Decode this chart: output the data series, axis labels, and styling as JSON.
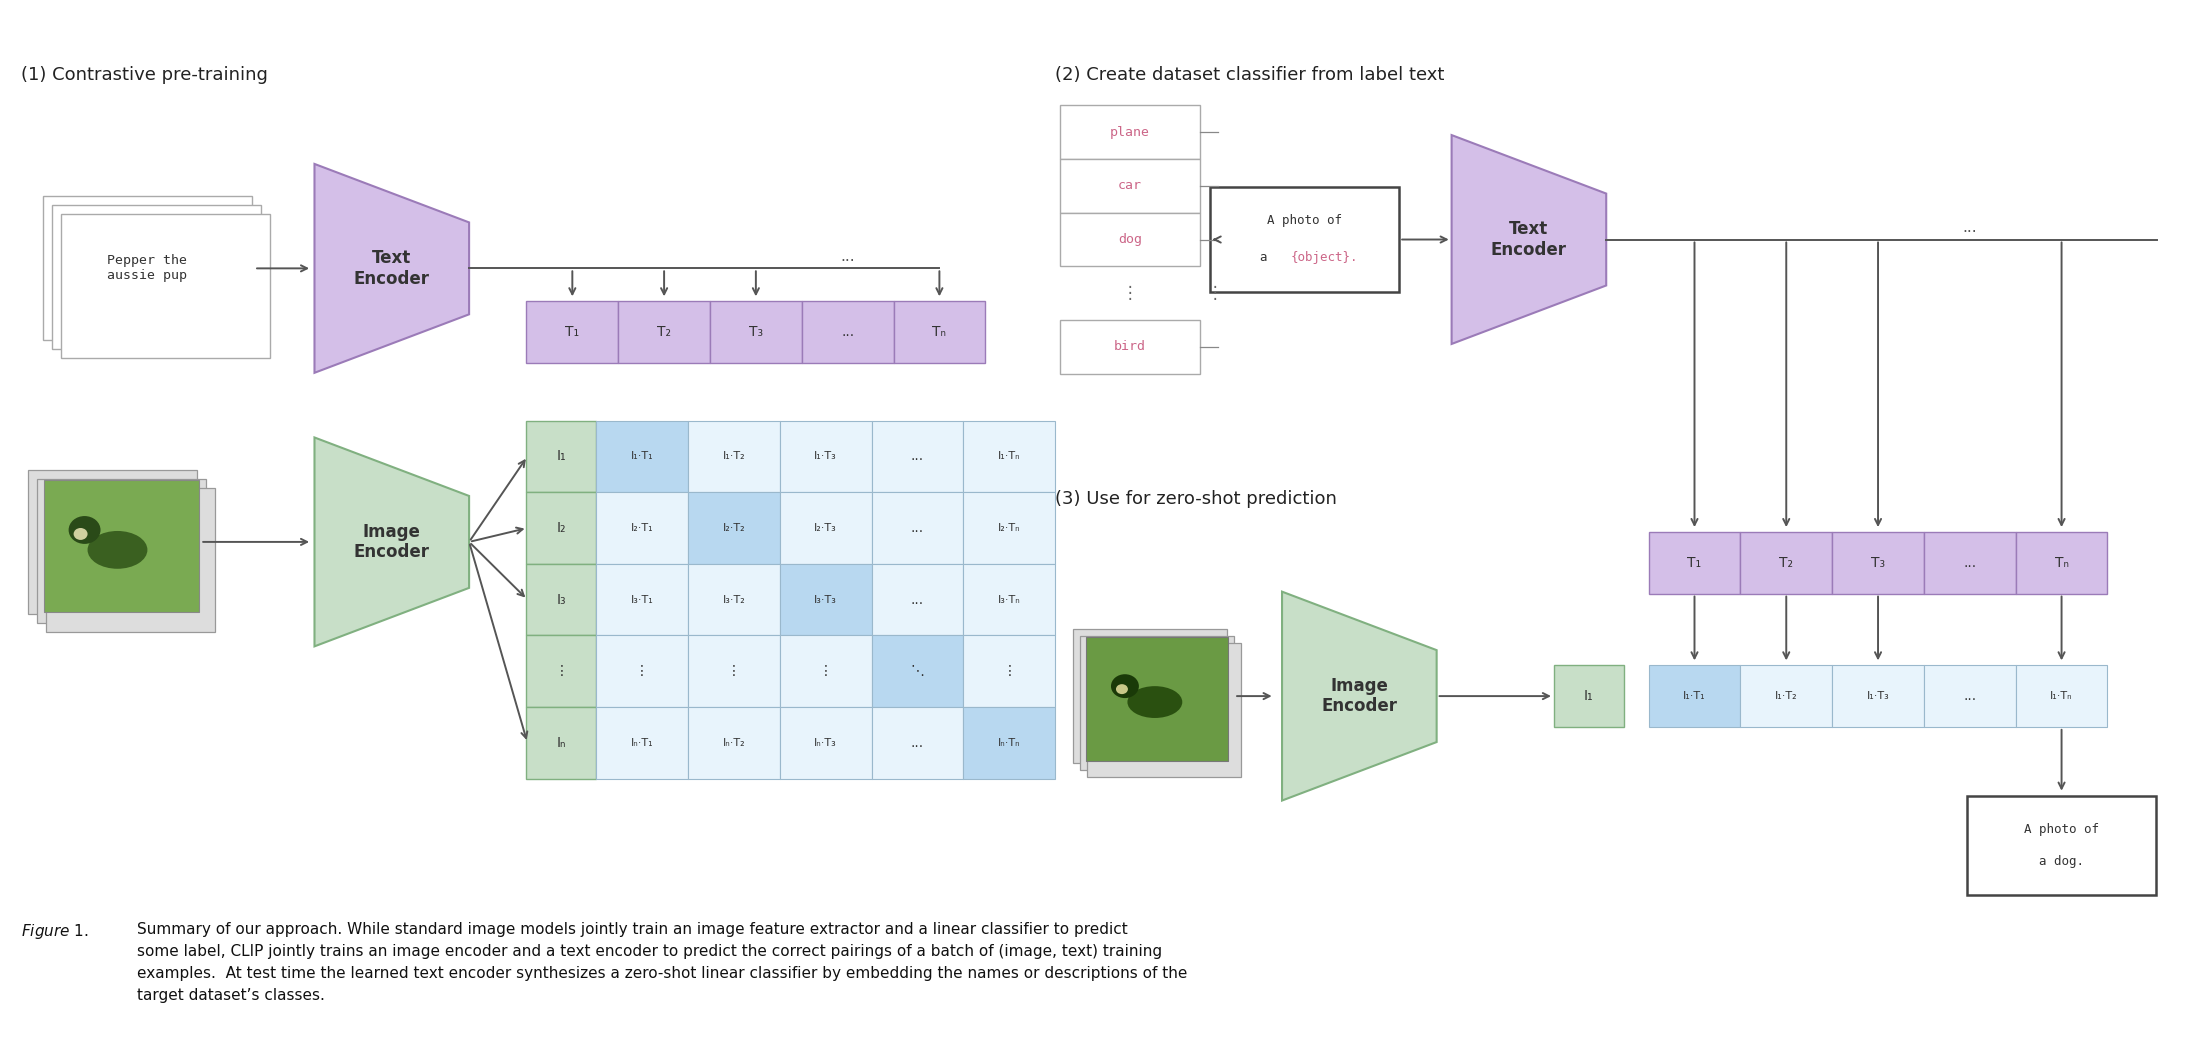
{
  "title1": "(1) Contrastive pre-training",
  "title2": "(2) Create dataset classifier from label text",
  "title3": "(3) Use for zero-shot prediction",
  "text_encoder_label": "Text\nEncoder",
  "image_encoder_label": "Image\nEncoder",
  "text_box_text": "Pepper the\naussie pup",
  "purple_fill": "#d4bfe8",
  "purple_edge": "#9b7bb8",
  "green_fill": "#c8dfc8",
  "green_edge": "#80b080",
  "blue_diag": "#b8d8f0",
  "blue_off": "#e8f4fc",
  "grid_edge": "#9ab8cc",
  "text_pink": "#cc6688",
  "bg": "#ffffff",
  "arrow_col": "#555555",
  "caption_italic": "Figure 1.",
  "caption_rest": " Summary of our approach. While standard image models jointly train an image feature extractor and a linear classifier to predict\nsome label, CLIP jointly trains an image encoder and a text encoder to predict the correct pairings of a batch of (image, text) training\nexamples.  At test time the learned text encoder synthesizes a zero-shot linear classifier by embedding the names or descriptions of the\ntarget dataset’s classes."
}
